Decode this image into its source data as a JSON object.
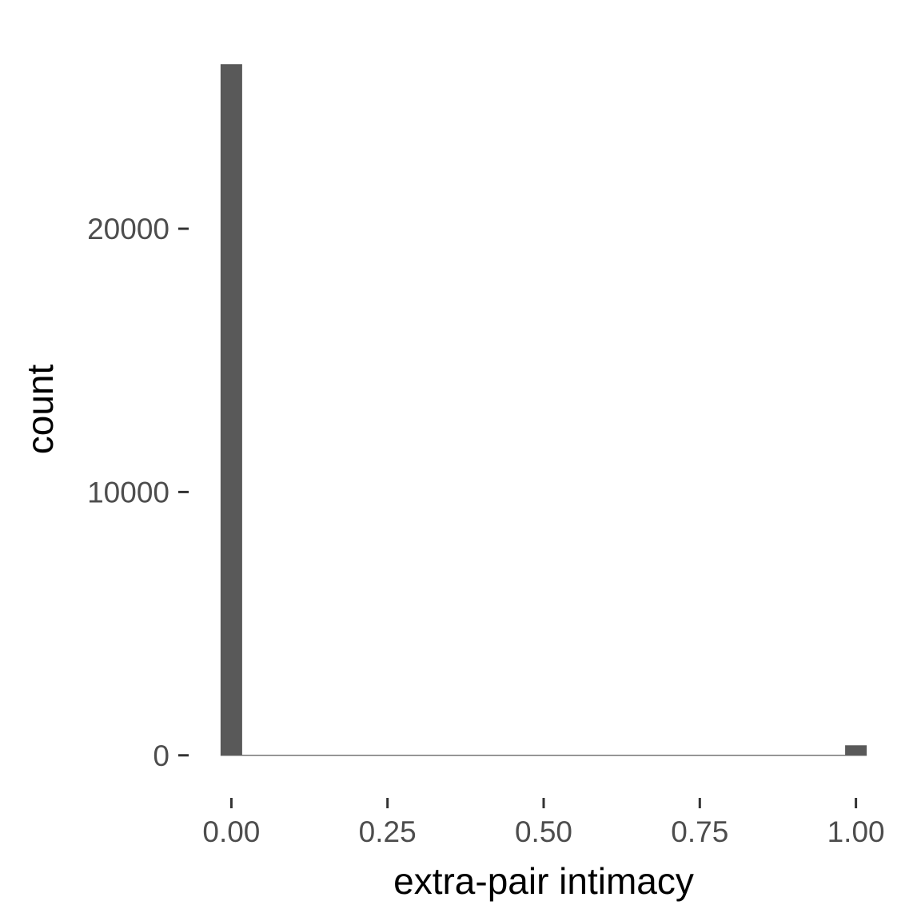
{
  "chart_data": {
    "type": "bar",
    "subtype": "histogram",
    "title": "",
    "xlabel": "extra-pair intimacy",
    "ylabel": "count",
    "bars": [
      {
        "x": 0.0,
        "count": 26250
      },
      {
        "x": 1.0,
        "count": 380
      }
    ],
    "xlim": [
      -0.0517,
      1.0517
    ],
    "ylim": [
      -1313,
      27563
    ],
    "x_ticks": [
      0.0,
      0.25,
      0.5,
      0.75,
      1.0
    ],
    "x_tick_labels": [
      "0.00",
      "0.25",
      "0.50",
      "0.75",
      "1.00"
    ],
    "y_ticks": [
      0,
      10000,
      20000
    ],
    "y_tick_labels": [
      "0",
      "10000",
      "20000"
    ],
    "grid": false,
    "legend": "none",
    "bar_color": "#595959",
    "baseline_color": "#595959",
    "tick_color": "#333333"
  }
}
